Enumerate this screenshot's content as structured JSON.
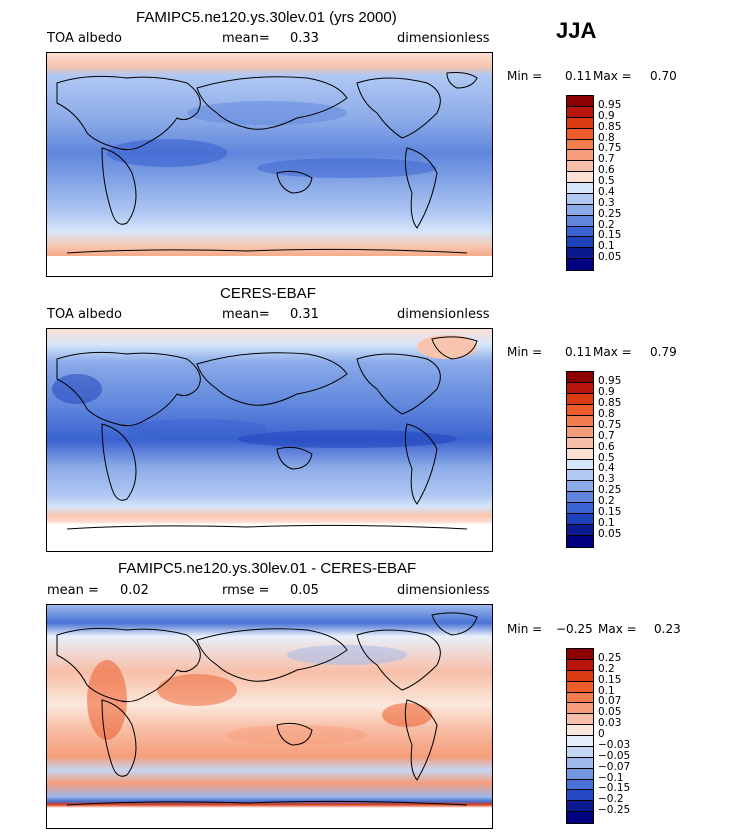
{
  "season": "JJA",
  "chart_data": [
    {
      "type": "heatmap",
      "title": "FAMIPC5.ne120.ys.30lev.01 (yrs 2000)",
      "left_label": "TOA albedo",
      "mean_label": "mean=",
      "mean_value": "0.33",
      "units": "dimensionless",
      "min_label": "Min =",
      "min_value": "0.11",
      "max_label": "Max =",
      "max_value": "0.70",
      "colorbar": {
        "labels": [
          "0.95",
          "0.9",
          "0.85",
          "0.8",
          "0.75",
          "0.7",
          "0.6",
          "0.5",
          "0.4",
          "0.3",
          "0.25",
          "0.2",
          "0.15",
          "0.1",
          "0.05"
        ],
        "colors": [
          "#8b0000",
          "#b8160c",
          "#d93a12",
          "#ed5d2c",
          "#f27e50",
          "#f59d7a",
          "#f8bfa8",
          "#fbe0d4",
          "#d6e6fa",
          "#b0c8f2",
          "#8baae8",
          "#5f86dc",
          "#3a62d0",
          "#1d40bb",
          "#0a1a8c",
          "#000080"
        ]
      }
    },
    {
      "type": "heatmap",
      "title": "CERES-EBAF",
      "left_label": "TOA albedo",
      "mean_label": "mean=",
      "mean_value": "0.31",
      "units": "dimensionless",
      "min_label": "Min =",
      "min_value": "0.11",
      "max_label": "Max =",
      "max_value": "0.79",
      "colorbar": {
        "labels": [
          "0.95",
          "0.9",
          "0.85",
          "0.8",
          "0.75",
          "0.7",
          "0.6",
          "0.5",
          "0.4",
          "0.3",
          "0.25",
          "0.2",
          "0.15",
          "0.1",
          "0.05"
        ],
        "colors": [
          "#8b0000",
          "#b8160c",
          "#d93a12",
          "#ed5d2c",
          "#f27e50",
          "#f59d7a",
          "#f8bfa8",
          "#fbe0d4",
          "#d6e6fa",
          "#b0c8f2",
          "#8baae8",
          "#5f86dc",
          "#3a62d0",
          "#1d40bb",
          "#0a1a8c",
          "#000080"
        ]
      }
    },
    {
      "type": "heatmap",
      "title": "FAMIPC5.ne120.ys.30lev.01 - CERES-EBAF",
      "left_label": "mean =",
      "left_value": "0.02",
      "mean_label": "rmse =",
      "mean_value": "0.05",
      "units": "dimensionless",
      "min_label": "Min =",
      "min_value": "−0.25",
      "max_label": "Max =",
      "max_value": "0.23",
      "colorbar": {
        "labels": [
          "0.25",
          "0.2",
          "0.15",
          "0.1",
          "0.07",
          "0.05",
          "0.03",
          "0",
          "−0.03",
          "−0.05",
          "−0.07",
          "−0.1",
          "−0.15",
          "−0.2",
          "−0.25"
        ],
        "colors": [
          "#8b0000",
          "#b8160c",
          "#d93a12",
          "#ed5d2c",
          "#f27e50",
          "#f59d7a",
          "#f8bfa8",
          "#fbe8dc",
          "#e8eefa",
          "#c6d6f5",
          "#9db8ec",
          "#7497e2",
          "#4a72d6",
          "#2448c2",
          "#0a1a8c",
          "#000080"
        ]
      }
    }
  ]
}
